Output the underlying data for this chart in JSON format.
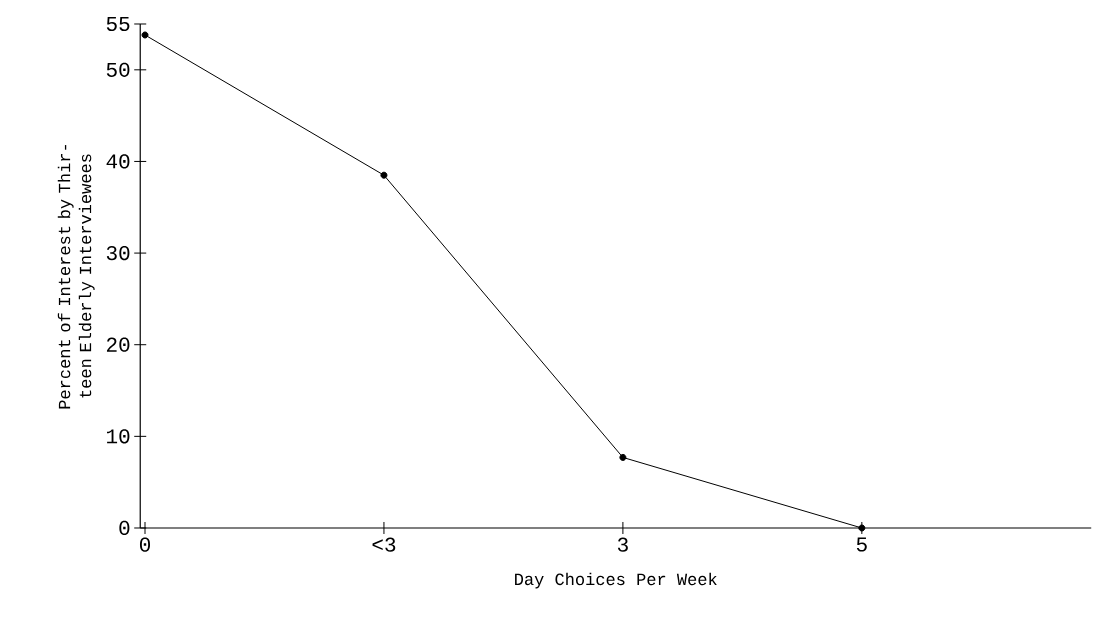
{
  "chart_data": {
    "type": "line",
    "xlabel": "Day Choices Per Week",
    "ylabel": "Percent of Interest by Thir-teen Elderly Interviewees",
    "categories": [
      "0",
      "<3",
      "3",
      "5"
    ],
    "values": [
      53.8,
      38.5,
      7.7,
      0
    ],
    "color": "#000000",
    "marker": "circle",
    "line_style": "solid",
    "grid": false,
    "ylim": [
      0,
      55
    ],
    "yticks": [
      0,
      10,
      20,
      30,
      40,
      50,
      55
    ]
  }
}
